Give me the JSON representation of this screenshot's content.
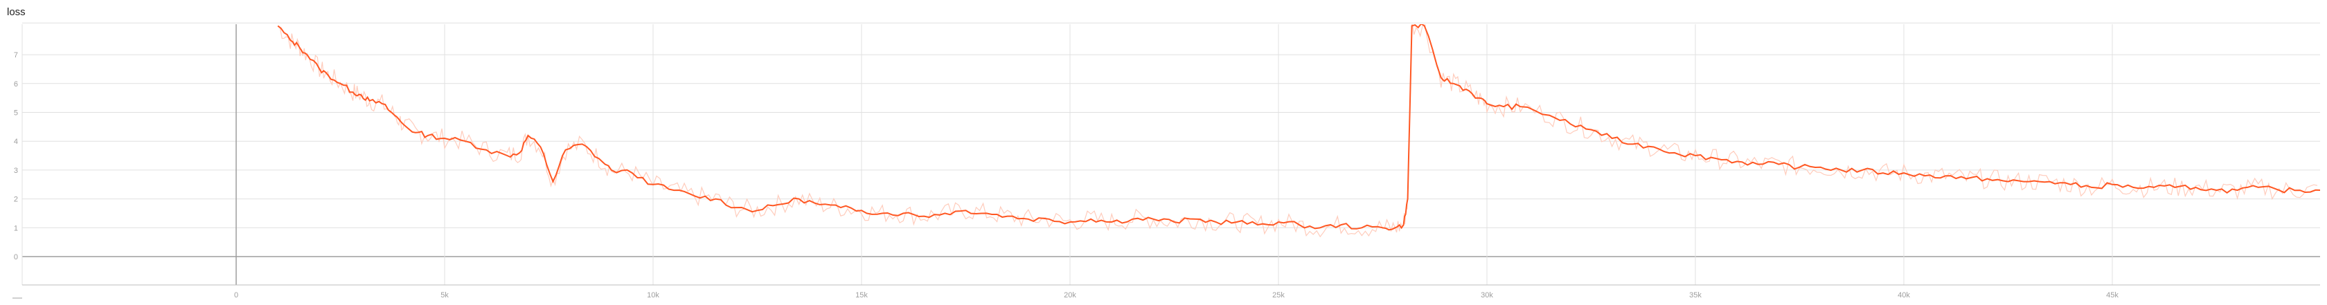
{
  "chart_title": "loss",
  "chart_data": {
    "type": "line",
    "title": "loss",
    "xlabel": "",
    "ylabel": "",
    "xlim": [
      -57000,
      1000000
    ],
    "ylim": [
      -1,
      8
    ],
    "xlim_steps": [
      -5700,
      50000
    ],
    "x_ticks": [
      0,
      5000,
      10000,
      15000,
      20000,
      25000,
      30000,
      35000,
      40000,
      45000
    ],
    "x_tick_labels": [
      "0",
      "5k",
      "10k",
      "15k",
      "20k",
      "25k",
      "30k",
      "35k",
      "40k",
      "45k"
    ],
    "y_ticks": [
      0,
      1,
      2,
      3,
      4,
      5,
      6,
      7
    ],
    "y_tick_labels": [
      "0",
      "1",
      "2",
      "3",
      "4",
      "5",
      "6",
      "7"
    ],
    "grid": true,
    "colors": {
      "smoothed": "#ff5722",
      "raw": "#ffccbc",
      "grid": "#e0e0e0",
      "axis": "#9e9e9e"
    },
    "series": [
      {
        "points": [
          [
            1000,
            8.0
          ],
          [
            1300,
            7.5
          ],
          [
            1500,
            7.3
          ],
          [
            1700,
            7.0
          ],
          [
            2000,
            6.5
          ],
          [
            2200,
            6.3
          ],
          [
            2500,
            6.0
          ],
          [
            2800,
            5.7
          ],
          [
            3000,
            5.6
          ],
          [
            3200,
            5.4
          ],
          [
            3500,
            5.3
          ],
          [
            3800,
            4.9
          ],
          [
            4000,
            4.6
          ],
          [
            4300,
            4.3
          ],
          [
            4600,
            4.2
          ],
          [
            5000,
            4.1
          ],
          [
            5500,
            4.0
          ],
          [
            6000,
            3.7
          ],
          [
            6500,
            3.5
          ],
          [
            6800,
            3.6
          ],
          [
            7000,
            4.2
          ],
          [
            7300,
            3.8
          ],
          [
            7600,
            2.6
          ],
          [
            7900,
            3.7
          ],
          [
            8300,
            3.9
          ],
          [
            8700,
            3.4
          ],
          [
            9000,
            3.0
          ],
          [
            9500,
            2.9
          ],
          [
            10000,
            2.5
          ],
          [
            10500,
            2.3
          ],
          [
            11000,
            2.1
          ],
          [
            11500,
            2.0
          ],
          [
            12000,
            1.7
          ],
          [
            12500,
            1.6
          ],
          [
            13000,
            1.8
          ],
          [
            13500,
            2.0
          ],
          [
            14000,
            1.8
          ],
          [
            14500,
            1.7
          ],
          [
            15000,
            1.6
          ],
          [
            15500,
            1.5
          ],
          [
            16000,
            1.5
          ],
          [
            16500,
            1.4
          ],
          [
            17000,
            1.5
          ],
          [
            17500,
            1.6
          ],
          [
            18000,
            1.5
          ],
          [
            18500,
            1.4
          ],
          [
            19000,
            1.3
          ],
          [
            19500,
            1.3
          ],
          [
            20000,
            1.2
          ],
          [
            20500,
            1.3
          ],
          [
            21000,
            1.2
          ],
          [
            21500,
            1.3
          ],
          [
            22000,
            1.3
          ],
          [
            22500,
            1.2
          ],
          [
            23000,
            1.3
          ],
          [
            23500,
            1.2
          ],
          [
            24000,
            1.2
          ],
          [
            24500,
            1.1
          ],
          [
            25000,
            1.2
          ],
          [
            25500,
            1.1
          ],
          [
            26000,
            1.0
          ],
          [
            26500,
            1.1
          ],
          [
            27000,
            1.0
          ],
          [
            27500,
            1.0
          ],
          [
            27800,
            1.0
          ],
          [
            28000,
            1.1
          ],
          [
            28100,
            2.0
          ],
          [
            28200,
            8.0
          ],
          [
            28500,
            8.0
          ],
          [
            28900,
            6.2
          ],
          [
            29200,
            6.0
          ],
          [
            29500,
            5.8
          ],
          [
            29800,
            5.5
          ],
          [
            30000,
            5.3
          ],
          [
            30400,
            5.2
          ],
          [
            30800,
            5.2
          ],
          [
            31500,
            4.9
          ],
          [
            32000,
            4.6
          ],
          [
            32500,
            4.4
          ],
          [
            33000,
            4.1
          ],
          [
            33500,
            3.9
          ],
          [
            34000,
            3.8
          ],
          [
            34500,
            3.6
          ],
          [
            35000,
            3.5
          ],
          [
            35500,
            3.4
          ],
          [
            36000,
            3.3
          ],
          [
            36500,
            3.2
          ],
          [
            37000,
            3.2
          ],
          [
            37500,
            3.1
          ],
          [
            38000,
            3.1
          ],
          [
            38500,
            3.0
          ],
          [
            39000,
            3.0
          ],
          [
            39500,
            2.9
          ],
          [
            40000,
            2.9
          ],
          [
            40500,
            2.8
          ],
          [
            41000,
            2.8
          ],
          [
            41500,
            2.7
          ],
          [
            42000,
            2.7
          ],
          [
            42500,
            2.6
          ],
          [
            43000,
            2.6
          ],
          [
            43500,
            2.6
          ],
          [
            44000,
            2.5
          ],
          [
            44500,
            2.4
          ],
          [
            45000,
            2.5
          ],
          [
            45500,
            2.4
          ],
          [
            46000,
            2.4
          ],
          [
            46500,
            2.4
          ],
          [
            47000,
            2.4
          ],
          [
            47500,
            2.3
          ],
          [
            48000,
            2.3
          ],
          [
            48500,
            2.4
          ],
          [
            49000,
            2.3
          ],
          [
            49500,
            2.3
          ],
          [
            50000,
            2.3
          ]
        ]
      }
    ]
  }
}
